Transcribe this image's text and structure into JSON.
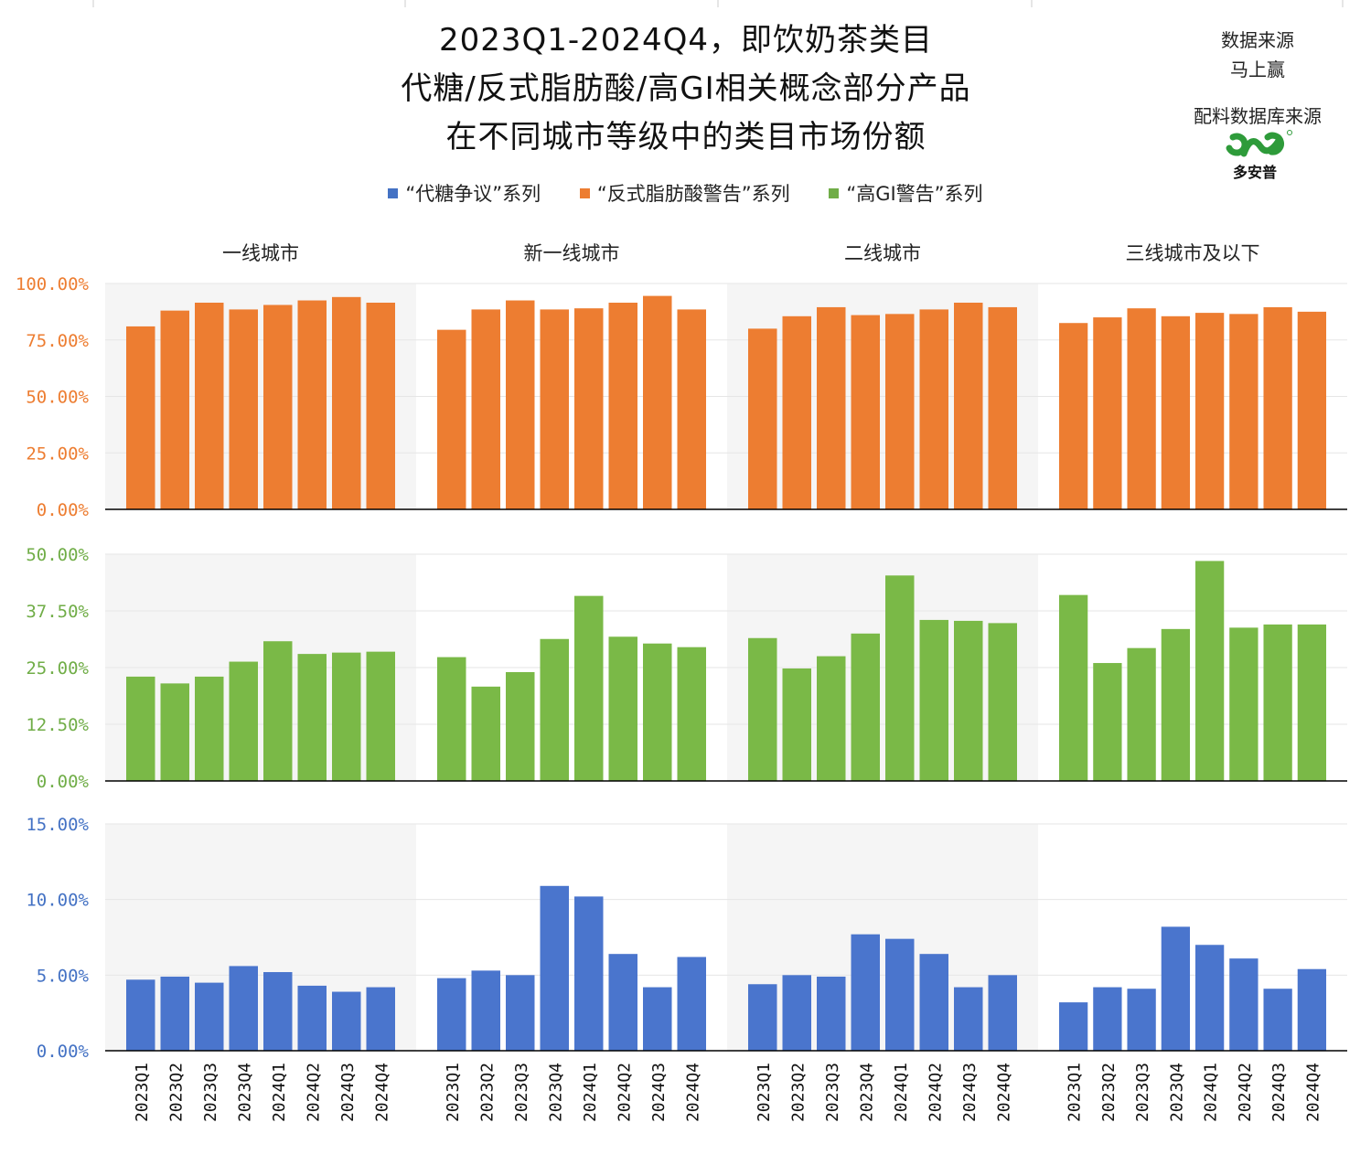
{
  "title_lines": [
    "2023Q1-2024Q4，即饮奶茶类目",
    "代糖/反式脂肪酸/高GI相关概念部分产品",
    "在不同城市等级中的类目市场份额"
  ],
  "source": {
    "label1": "数据来源",
    "name1": "马上赢",
    "label2": "配料数据库来源",
    "logo_text": "多安普"
  },
  "legend": [
    {
      "label": "“代糖争议”系列",
      "color": "#4472C4"
    },
    {
      "label": "“反式脂肪酸警告”系列",
      "color": "#ED7D31"
    },
    {
      "label": "“高GI警告”系列",
      "color": "#70AD47"
    }
  ],
  "chart_data": {
    "type": "bar",
    "categories": [
      "2023Q1",
      "2023Q2",
      "2023Q3",
      "2023Q4",
      "2024Q1",
      "2024Q2",
      "2024Q3",
      "2024Q4"
    ],
    "panels": [
      "一线城市",
      "新一线城市",
      "二线城市",
      "三线城市及以下"
    ],
    "rows": [
      {
        "series": "“反式脂肪酸警告”系列",
        "color": "#ED7D31",
        "tick_color": "#ED7D31",
        "ylim": [
          0,
          100
        ],
        "yticks": [
          "0.00%",
          "25.00%",
          "50.00%",
          "75.00%",
          "100.00%"
        ],
        "values": [
          [
            81.0,
            88.0,
            91.5,
            88.5,
            90.5,
            92.5,
            94.0,
            91.5
          ],
          [
            79.5,
            88.5,
            92.5,
            88.5,
            89.0,
            91.5,
            94.5,
            88.5
          ],
          [
            80.0,
            85.5,
            89.5,
            86.0,
            86.5,
            88.5,
            91.5,
            89.5
          ],
          [
            82.5,
            85.0,
            89.0,
            85.5,
            87.0,
            86.5,
            89.5,
            87.5
          ]
        ]
      },
      {
        "series": "“高GI警告”系列",
        "color": "#7AB947",
        "tick_color": "#70AD47",
        "ylim": [
          0,
          50
        ],
        "yticks": [
          "0.00%",
          "12.50%",
          "25.00%",
          "37.50%",
          "50.00%"
        ],
        "values": [
          [
            23.0,
            21.5,
            23.0,
            26.3,
            30.8,
            28.0,
            28.3,
            28.5
          ],
          [
            27.3,
            20.8,
            24.0,
            31.3,
            40.8,
            31.8,
            30.3,
            29.5
          ],
          [
            31.5,
            24.8,
            27.5,
            32.5,
            45.3,
            35.5,
            35.3,
            34.8
          ],
          [
            41.0,
            26.0,
            29.3,
            33.5,
            48.5,
            33.8,
            34.5,
            34.5
          ]
        ]
      },
      {
        "series": "“代糖争议”系列",
        "color": "#4A75CD",
        "tick_color": "#4472C4",
        "ylim": [
          0,
          15
        ],
        "yticks": [
          "0.00%",
          "5.00%",
          "10.00%",
          "15.00%"
        ],
        "values": [
          [
            4.7,
            4.9,
            4.5,
            5.6,
            5.2,
            4.3,
            3.9,
            4.2
          ],
          [
            4.8,
            5.3,
            5.0,
            10.9,
            10.2,
            6.4,
            4.2,
            6.2
          ],
          [
            4.4,
            5.0,
            4.9,
            7.7,
            7.4,
            6.4,
            4.2,
            5.0
          ],
          [
            3.2,
            4.2,
            4.1,
            8.2,
            7.0,
            6.1,
            4.1,
            5.4
          ]
        ]
      }
    ]
  }
}
